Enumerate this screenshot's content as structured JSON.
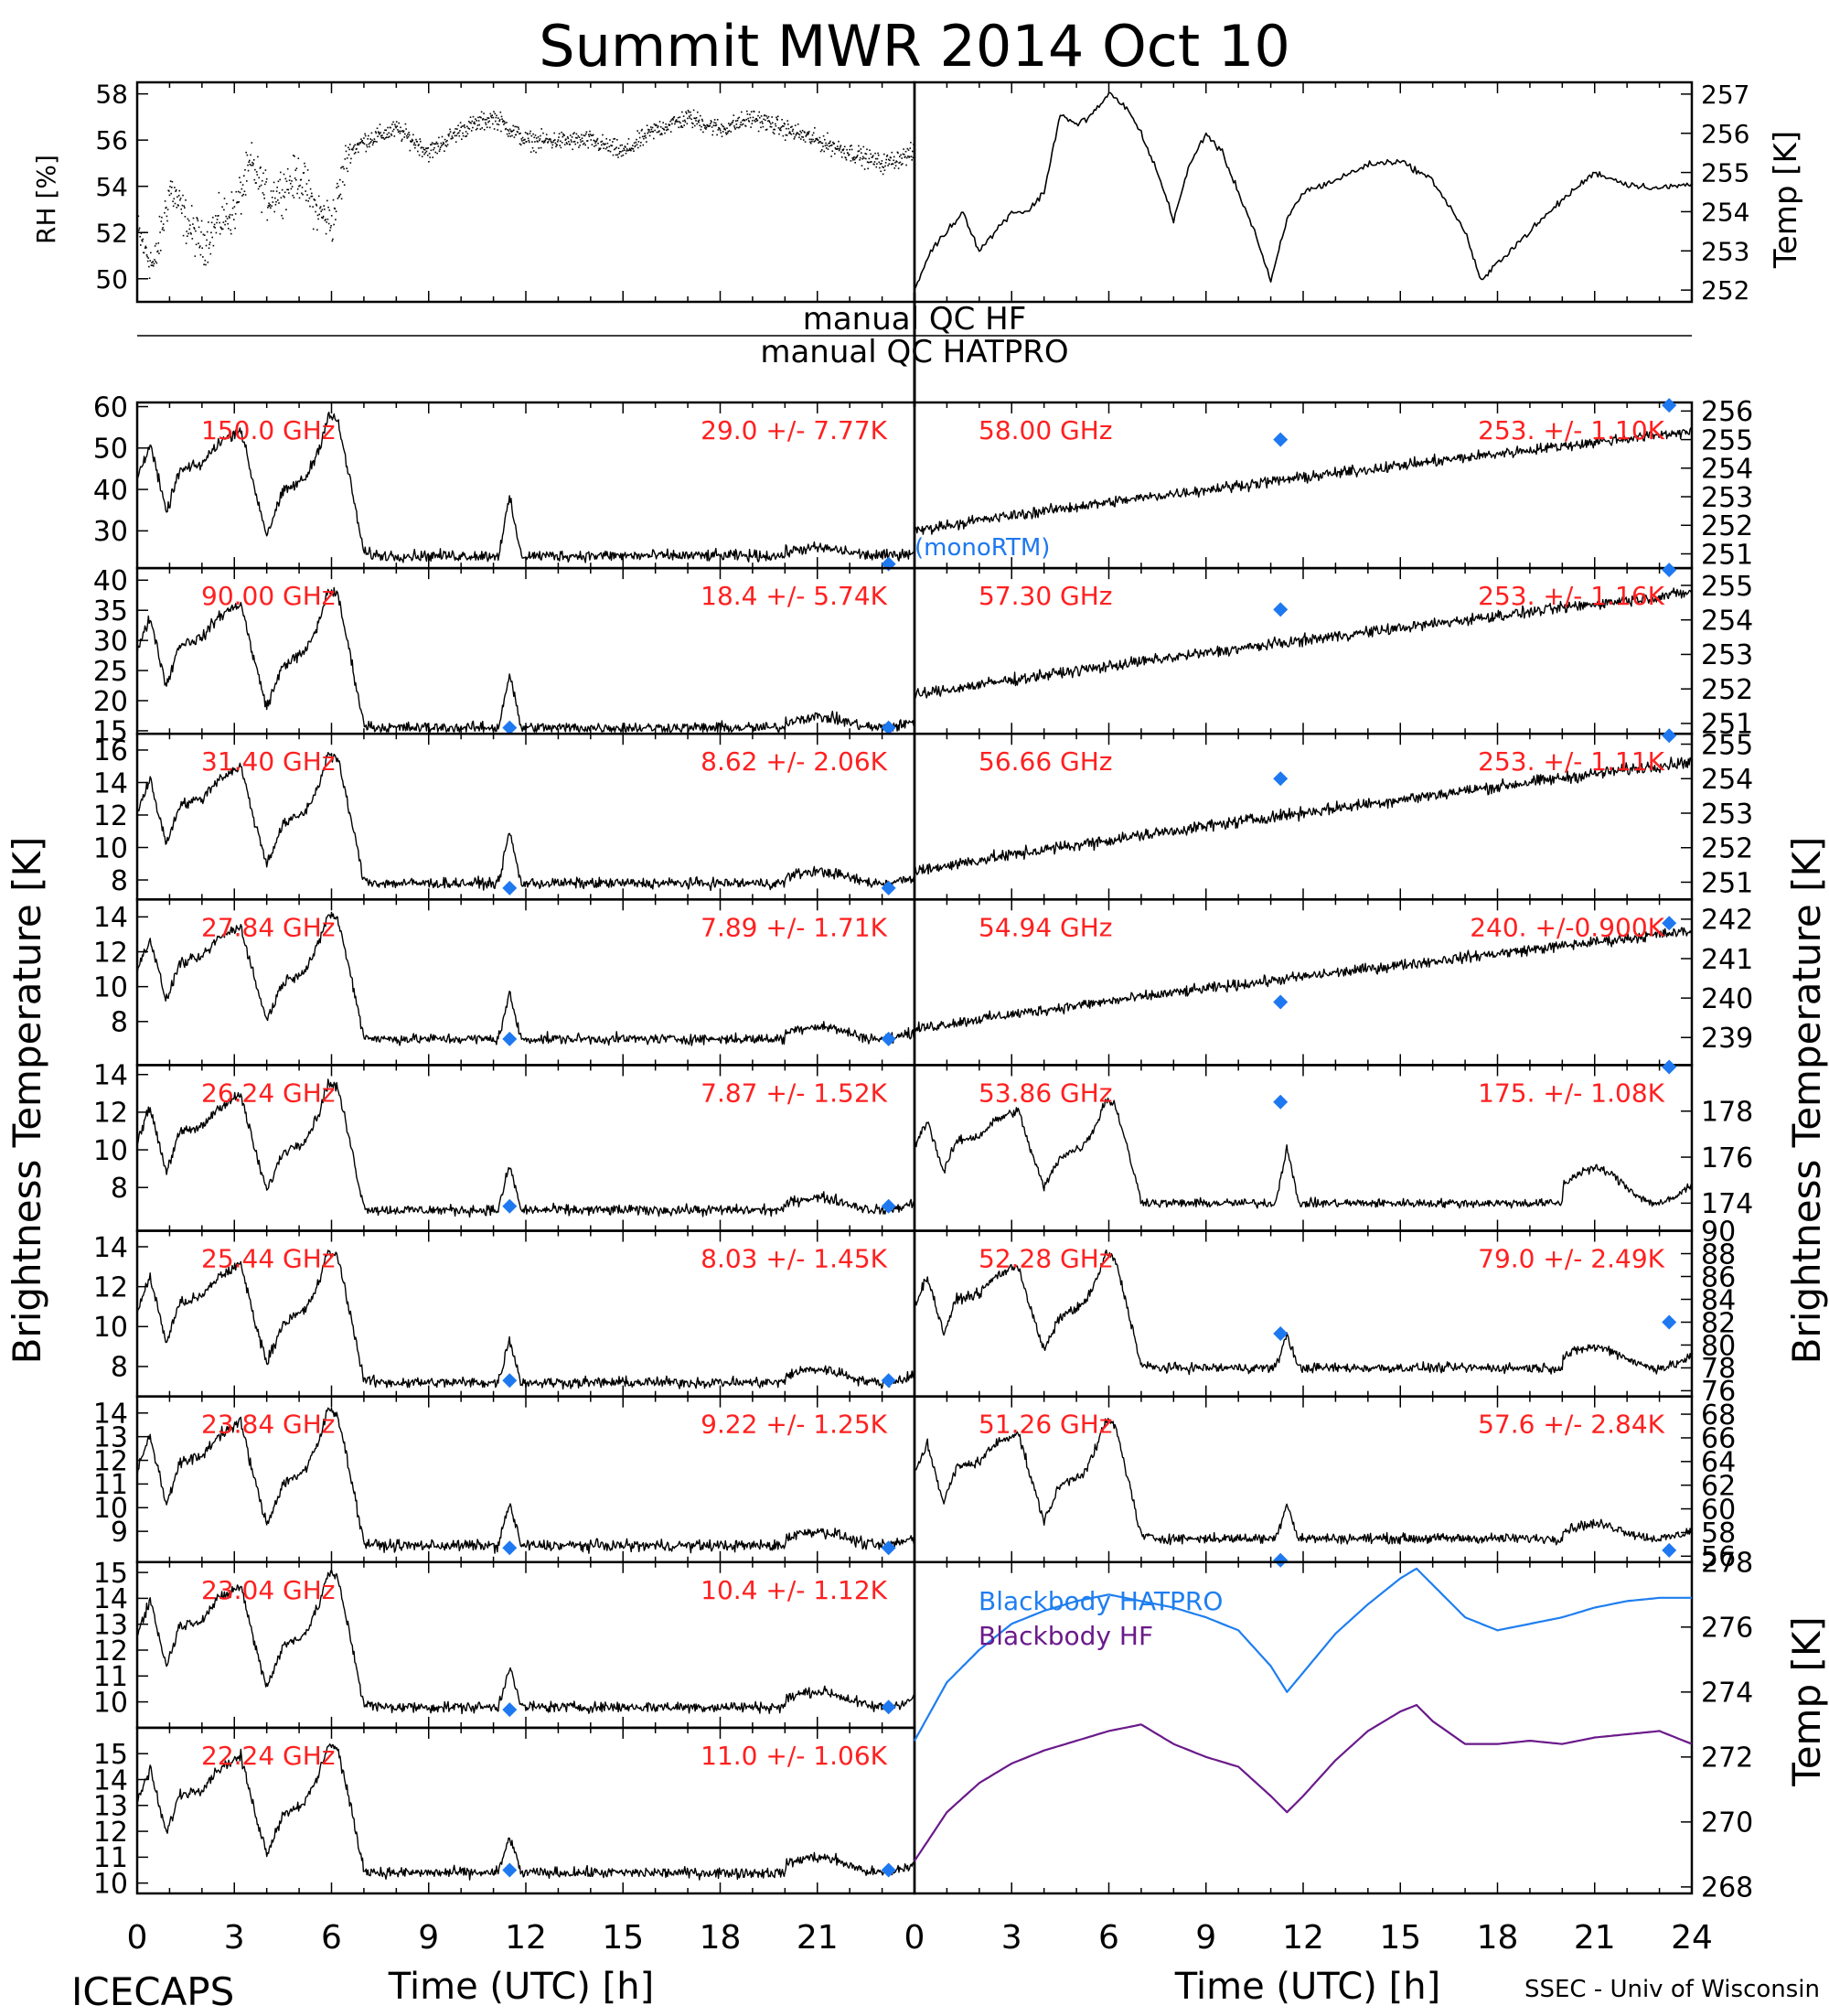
{
  "title": "Summit MWR 2014 Oct 10",
  "footer": {
    "left": "ICECAPS",
    "right": "SSEC - Univ of Wisconsin"
  },
  "colors": {
    "data": "#000000",
    "stats": "#ff2020",
    "marker": "#1e78f0",
    "hatpro": "#1e7ef0",
    "hf": "#6a1a8a"
  },
  "qc": {
    "hf": "manual QC HF",
    "hatpro": "manual QC HATPRO"
  },
  "axes": {
    "bt_left": "Brightness Temperature [K]",
    "bt_right": "Brightness Temperature [K]",
    "time": "Time (UTC) [h]",
    "rh": "RH [%]",
    "temp": "Temp [K]",
    "bb_temp": "Temp [K]",
    "time_ticks": [
      "0",
      "3",
      "6",
      "9",
      "12",
      "15",
      "18",
      "21",
      "24"
    ]
  },
  "bb_legend": {
    "hatpro": "Blackbody HATPRO",
    "hf": "Blackbody HF"
  },
  "overlay_note": "(monoRTM)",
  "chart_data": [
    {
      "id": "rh",
      "type": "scatter",
      "ylabel": "RH [%]",
      "xlim": [
        0,
        24
      ],
      "ylim": [
        49,
        58.5
      ],
      "yticks": [
        50,
        52,
        54,
        56,
        58
      ],
      "x": [
        0,
        0.5,
        1,
        1.5,
        2,
        2.5,
        3,
        3.5,
        4,
        4.5,
        5,
        5.5,
        6,
        6.5,
        7,
        8,
        9,
        10,
        11,
        12,
        13,
        14,
        15,
        16,
        17,
        18,
        19,
        20,
        21,
        22,
        23,
        24
      ],
      "y": [
        52,
        50.5,
        54,
        52.5,
        51.5,
        52.5,
        53,
        55,
        53.5,
        54,
        54.5,
        53,
        52.5,
        55.5,
        56,
        56.5,
        55.5,
        56.5,
        57,
        56,
        56,
        56,
        55.5,
        56.5,
        57,
        56.5,
        57,
        56.5,
        56,
        55.5,
        55,
        55.5
      ]
    },
    {
      "id": "tair",
      "type": "line",
      "ylabel": "Temp [K]",
      "xlim": [
        0,
        24
      ],
      "ylim": [
        251.7,
        257.3
      ],
      "yticks": [
        252,
        253,
        254,
        255,
        256,
        257
      ],
      "x": [
        0,
        0.5,
        1,
        1.5,
        2,
        2.5,
        3,
        3.5,
        4,
        4.5,
        5,
        5.5,
        6,
        6.5,
        7,
        7.5,
        8,
        8.5,
        9,
        9.5,
        10,
        10.5,
        11,
        11.5,
        12,
        13,
        14,
        15,
        16,
        17,
        17.5,
        18,
        19,
        20,
        21,
        22,
        23,
        24
      ],
      "y": [
        252,
        253,
        253.5,
        254,
        253,
        253.5,
        254,
        254,
        254.5,
        256.5,
        256.2,
        256.5,
        257,
        256.7,
        256,
        255,
        253.8,
        255.2,
        256,
        255.5,
        254.5,
        253.5,
        252.2,
        253.8,
        254.5,
        254.8,
        255.2,
        255.3,
        254.8,
        253.5,
        252.2,
        252.7,
        253.5,
        254.3,
        255,
        254.7,
        254.6,
        254.7
      ]
    },
    {
      "id": "bb",
      "type": "line",
      "ylabel": "Temp [K]",
      "xlim": [
        0,
        24
      ],
      "ylim": [
        267.8,
        278
      ],
      "yticks": [
        268,
        270,
        272,
        274,
        276,
        278
      ],
      "series": [
        {
          "name": "Blackbody HATPRO",
          "x": [
            0,
            1,
            2,
            3,
            4,
            5,
            6,
            7,
            8,
            9,
            10,
            11,
            11.5,
            12,
            13,
            14,
            15,
            15.5,
            16,
            17,
            18,
            19,
            20,
            21,
            22,
            23,
            24
          ],
          "y": [
            272.5,
            274.3,
            275.3,
            276.1,
            276.5,
            276.8,
            277,
            276.8,
            276.6,
            276.3,
            275.9,
            274.8,
            274,
            274.6,
            275.8,
            276.7,
            277.5,
            277.8,
            277.3,
            276.3,
            275.9,
            276.1,
            276.3,
            276.6,
            276.8,
            276.9,
            276.9
          ]
        },
        {
          "name": "Blackbody HF",
          "x": [
            0,
            1,
            2,
            3,
            4,
            5,
            6,
            7,
            8,
            9,
            10,
            11,
            11.5,
            12,
            13,
            14,
            15,
            15.5,
            16,
            17,
            18,
            19,
            20,
            21,
            22,
            23,
            24
          ],
          "y": [
            268.8,
            270.3,
            271.2,
            271.8,
            272.2,
            272.5,
            272.8,
            273,
            272.4,
            272,
            271.7,
            270.8,
            270.3,
            270.8,
            271.9,
            272.8,
            273.4,
            273.6,
            273.1,
            272.4,
            272.4,
            272.5,
            272.4,
            272.6,
            272.7,
            272.8,
            272.4
          ]
        }
      ]
    },
    {
      "id": "hf_channels",
      "type": "line",
      "xlabel": "Time (UTC) [h]",
      "xlim": [
        0,
        24
      ],
      "xticks": [
        0,
        3,
        6,
        9,
        12,
        15,
        18,
        21
      ],
      "channels": [
        {
          "freq": "150.0 GHz",
          "stats": "29.0 +/- 7.77K",
          "ylim": [
            21,
            61
          ],
          "yticks": [
            30,
            40,
            50,
            60
          ],
          "base": 24,
          "amp": 34,
          "spike": 14,
          "late": 3,
          "marks": [
            [
              23.2,
              22
            ]
          ]
        },
        {
          "freq": "90.00 GHz",
          "stats": "18.4 +/- 5.74K",
          "ylim": [
            14.5,
            42
          ],
          "yticks": [
            15,
            20,
            25,
            30,
            35,
            40
          ],
          "base": 15.5,
          "amp": 23,
          "spike": 9,
          "late": 3,
          "marks": [
            [
              11.5,
              15.5
            ],
            [
              23.2,
              15.5
            ]
          ]
        },
        {
          "freq": "31.40 GHz",
          "stats": "8.62 +/- 2.06K",
          "ylim": [
            6.8,
            17
          ],
          "yticks": [
            8,
            10,
            12,
            14,
            16
          ],
          "base": 7.8,
          "amp": 8,
          "spike": 3.2,
          "late": 1.2,
          "marks": [
            [
              11.5,
              7.5
            ],
            [
              23.2,
              7.5
            ]
          ]
        },
        {
          "freq": "27.84 GHz",
          "stats": "7.89 +/- 1.71K",
          "ylim": [
            5.5,
            15
          ],
          "yticks": [
            8,
            10,
            12,
            14
          ],
          "base": 7,
          "amp": 7.2,
          "spike": 2.6,
          "late": 1.2,
          "marks": [
            [
              11.5,
              7
            ],
            [
              23.2,
              7
            ]
          ]
        },
        {
          "freq": "26.24 GHz",
          "stats": "7.87 +/- 1.52K",
          "ylim": [
            5.7,
            14.5
          ],
          "yticks": [
            8,
            10,
            12,
            14
          ],
          "base": 6.8,
          "amp": 6.8,
          "spike": 2.4,
          "late": 1.1,
          "marks": [
            [
              11.5,
              7
            ],
            [
              23.2,
              7
            ]
          ]
        },
        {
          "freq": "25.44 GHz",
          "stats": "8.03 +/- 1.45K",
          "ylim": [
            6.5,
            14.8
          ],
          "yticks": [
            8,
            10,
            12,
            14
          ],
          "base": 7.2,
          "amp": 6.6,
          "spike": 2.2,
          "late": 1.1,
          "marks": [
            [
              11.5,
              7.3
            ],
            [
              23.2,
              7.3
            ]
          ]
        },
        {
          "freq": "23.84 GHz",
          "stats": "9.22 +/- 1.25K",
          "ylim": [
            7.7,
            14.7
          ],
          "yticks": [
            9,
            10,
            11,
            12,
            13,
            14
          ],
          "base": 8.4,
          "amp": 5.8,
          "spike": 1.8,
          "late": 1,
          "marks": [
            [
              11.5,
              8.3
            ],
            [
              23.2,
              8.3
            ]
          ]
        },
        {
          "freq": "23.04 GHz",
          "stats": "10.4 +/- 1.12K",
          "ylim": [
            9,
            15.4
          ],
          "yticks": [
            10,
            11,
            12,
            13,
            14,
            15
          ],
          "base": 9.8,
          "amp": 5.2,
          "spike": 1.6,
          "late": 1,
          "marks": [
            [
              11.5,
              9.7
            ],
            [
              23.2,
              9.8
            ]
          ]
        },
        {
          "freq": "22.24 GHz",
          "stats": "11.0 +/- 1.06K",
          "ylim": [
            9.6,
            16
          ],
          "yticks": [
            10,
            11,
            12,
            13,
            14,
            15
          ],
          "base": 10.4,
          "amp": 5,
          "spike": 1.4,
          "late": 1,
          "marks": [
            [
              11.5,
              10.5
            ],
            [
              23.2,
              10.5
            ]
          ]
        }
      ]
    },
    {
      "id": "hatpro_channels",
      "type": "line",
      "xlabel": "Time (UTC) [h]",
      "xlim": [
        0,
        24
      ],
      "xticks": [
        0,
        3,
        6,
        9,
        12,
        15,
        18,
        21,
        24
      ],
      "channels": [
        {
          "freq": "58.00 GHz",
          "stats": "253. +/- 1.10K",
          "ylim": [
            250.5,
            256.3
          ],
          "yticks": [
            251,
            252,
            253,
            254,
            255,
            256
          ],
          "kind": "trend",
          "start": 251.8,
          "end": 255.3,
          "marks": [
            [
              11.3,
              255
            ],
            [
              23.3,
              256.2
            ]
          ]
        },
        {
          "freq": "57.30 GHz",
          "stats": "253. +/- 1.16K",
          "ylim": [
            250.7,
            255.5
          ],
          "yticks": [
            251,
            252,
            253,
            254,
            255
          ],
          "kind": "trend",
          "start": 251.8,
          "end": 254.8,
          "marks": [
            [
              11.3,
              254.3
            ],
            [
              23.3,
              255.5
            ]
          ]
        },
        {
          "freq": "56.66 GHz",
          "stats": "253. +/- 1.11K",
          "ylim": [
            250.5,
            255.3
          ],
          "yticks": [
            251,
            252,
            253,
            254,
            255
          ],
          "kind": "trend",
          "start": 251.3,
          "end": 254.5,
          "marks": [
            [
              11.3,
              254
            ],
            [
              23.3,
              255.3
            ]
          ]
        },
        {
          "freq": "54.94 GHz",
          "stats": "240. +/-0.900K",
          "ylim": [
            238.3,
            242.5
          ],
          "yticks": [
            239,
            240,
            241,
            242
          ],
          "kind": "trend",
          "start": 239.2,
          "end": 241.7,
          "marks": [
            [
              11.3,
              239.9
            ],
            [
              23.3,
              241.9
            ]
          ]
        },
        {
          "freq": "53.86 GHz",
          "stats": "175. +/- 1.08K",
          "ylim": [
            172.8,
            180
          ],
          "yticks": [
            174,
            176,
            178
          ],
          "kind": "peaks",
          "base": 174,
          "amp": 4.5,
          "spike": 2.5,
          "late": 2.5,
          "marks": [
            [
              11.3,
              178.4
            ],
            [
              23.3,
              180
            ]
          ]
        },
        {
          "freq": "52.28 GHz",
          "stats": "79.0 +/- 2.49K",
          "ylim": [
            75.5,
            90
          ],
          "yticks": [
            76,
            78,
            80,
            82,
            84,
            86,
            88,
            90
          ],
          "kind": "peaks",
          "base": 78,
          "amp": 10,
          "spike": 3,
          "late": 3,
          "marks": [
            [
              11.3,
              81
            ],
            [
              23.3,
              82
            ]
          ]
        },
        {
          "freq": "51.26 GHz",
          "stats": "57.6 +/- 2.84K",
          "ylim": [
            55.5,
            69.5
          ],
          "yticks": [
            56,
            58,
            60,
            62,
            64,
            66,
            68
          ],
          "kind": "peaks",
          "base": 57.5,
          "amp": 10,
          "spike": 3,
          "late": 2,
          "marks": [
            [
              11.3,
              55.5
            ],
            [
              23.3,
              56.5
            ]
          ]
        }
      ]
    }
  ]
}
